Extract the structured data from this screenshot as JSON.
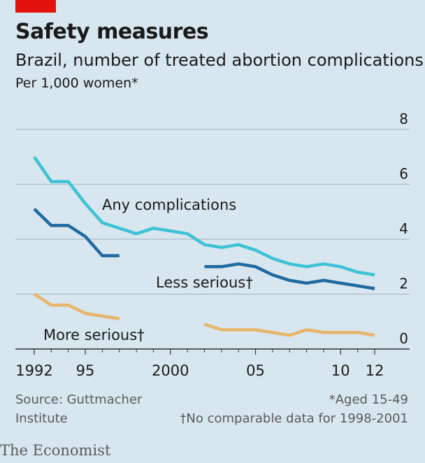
{
  "header": {
    "title": "Safety measures",
    "subtitle": "Brazil, number of treated abortion complications",
    "unit": "Per 1,000 women*"
  },
  "footer": {
    "source": "Source: Guttmacher Institute",
    "note1": "*Aged 15-49",
    "note2": "†No comparable data for 1998-2001",
    "brand": "The Economist"
  },
  "colors": {
    "background": "#d8e6ef",
    "brand_red": "#e3120b",
    "any": "#3ec3d5",
    "less": "#1f6aa0",
    "more": "#e8b66a",
    "grid": "#a9bdc9"
  },
  "chart_data": {
    "type": "line",
    "ylim": [
      0,
      8
    ],
    "yticks": [
      0,
      2,
      4,
      6,
      8
    ],
    "xlim": [
      1992,
      2012
    ],
    "xticks": [
      {
        "value": 1992,
        "label": "1992"
      },
      {
        "value": 1995,
        "label": "95"
      },
      {
        "value": 2000,
        "label": "2000"
      },
      {
        "value": 2005,
        "label": "05"
      },
      {
        "value": 2010,
        "label": "10"
      },
      {
        "value": 2012,
        "label": "12"
      }
    ],
    "grid": true,
    "series": [
      {
        "name": "Any complications",
        "color": "#3ec3d5",
        "segments": [
          [
            [
              1992,
              7.0
            ],
            [
              1993,
              6.1
            ],
            [
              1994,
              6.1
            ],
            [
              1995,
              5.3
            ],
            [
              1996,
              4.6
            ],
            [
              1997,
              4.4
            ],
            [
              1998,
              4.2
            ],
            [
              1999,
              4.4
            ],
            [
              2000,
              4.3
            ],
            [
              2001,
              4.2
            ],
            [
              2002,
              3.8
            ],
            [
              2003,
              3.7
            ],
            [
              2004,
              3.8
            ],
            [
              2005,
              3.6
            ],
            [
              2006,
              3.3
            ],
            [
              2007,
              3.1
            ],
            [
              2008,
              3.0
            ],
            [
              2009,
              3.1
            ],
            [
              2010,
              3.0
            ],
            [
              2011,
              2.8
            ],
            [
              2012,
              2.7
            ]
          ]
        ]
      },
      {
        "name": "Less serious†",
        "color": "#1f6aa0",
        "segments": [
          [
            [
              1992,
              5.1
            ],
            [
              1993,
              4.5
            ],
            [
              1994,
              4.5
            ],
            [
              1995,
              4.1
            ],
            [
              1996,
              3.4
            ],
            [
              1997,
              3.4
            ]
          ],
          [
            [
              2002,
              3.0
            ],
            [
              2003,
              3.0
            ],
            [
              2004,
              3.1
            ],
            [
              2005,
              3.0
            ],
            [
              2006,
              2.7
            ],
            [
              2007,
              2.5
            ],
            [
              2008,
              2.4
            ],
            [
              2009,
              2.5
            ],
            [
              2010,
              2.4
            ],
            [
              2011,
              2.3
            ],
            [
              2012,
              2.2
            ]
          ]
        ]
      },
      {
        "name": "More serious†",
        "color": "#e8b66a",
        "segments": [
          [
            [
              1992,
              2.0
            ],
            [
              1993,
              1.6
            ],
            [
              1994,
              1.6
            ],
            [
              1995,
              1.3
            ],
            [
              1996,
              1.2
            ],
            [
              1997,
              1.1
            ]
          ],
          [
            [
              2002,
              0.9
            ],
            [
              2003,
              0.7
            ],
            [
              2004,
              0.7
            ],
            [
              2005,
              0.7
            ],
            [
              2006,
              0.6
            ],
            [
              2007,
              0.5
            ],
            [
              2008,
              0.7
            ],
            [
              2009,
              0.6
            ],
            [
              2010,
              0.6
            ],
            [
              2011,
              0.6
            ],
            [
              2012,
              0.5
            ]
          ]
        ]
      }
    ]
  }
}
